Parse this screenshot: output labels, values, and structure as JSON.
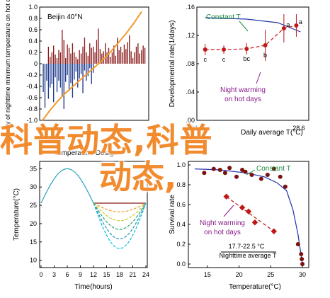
{
  "chart_data": [
    {
      "panel": "top-left",
      "type": "bar",
      "title": "Beijin 40°N",
      "ylabel": "Anomaly of nighttime minimum temperature on hot days",
      "xlabel": "",
      "ylim": [
        -1.0,
        1.0
      ],
      "yticks": [
        -1.0,
        -0.8,
        -0.6,
        -0.4,
        -0.2,
        0.0,
        0.2,
        0.4,
        0.6,
        0.8,
        1.0
      ],
      "ytick_labels": [
        "-1.0",
        "-0.8",
        "-0.6",
        "-0.4",
        "-0.2",
        "0",
        "0.2",
        "0.4",
        "0.6",
        "0.8",
        "1.0"
      ],
      "x_count": 60,
      "values": [
        0.4,
        0.22,
        0.18,
        0.3,
        0.12,
        0.2,
        0.32,
        0.16,
        0.1,
        0.24,
        0.2,
        0.6,
        0.42,
        0.1,
        0.34,
        0.28,
        0.18,
        0.36,
        0.2,
        0.12,
        0.08,
        0.24,
        0.18,
        0.3,
        0.46,
        0.2,
        0.14,
        0.36,
        0.28,
        0.3,
        0.2,
        0.42,
        0.62,
        0.26,
        0.18,
        0.22,
        0.36,
        0.2,
        0.28,
        0.12,
        0.2,
        0.32,
        0.14,
        0.46,
        0.24,
        0.3,
        0.2,
        0.34,
        0.26,
        0.38,
        0.5,
        0.22,
        0.1,
        0.2,
        0.3,
        0.36,
        0.18,
        0.24,
        0.32,
        0.28
      ],
      "negative_values": [
        -0.5,
        -0.78,
        -0.3,
        -0.62,
        -0.42,
        -0.36,
        -0.68,
        -0.24,
        -0.5,
        -0.3,
        -0.42,
        -0.58,
        -0.8,
        -0.32,
        -0.2,
        -0.48,
        -0.34,
        -0.6,
        -0.28,
        -0.14,
        -0.42,
        -0.26,
        -0.18,
        -0.52,
        -0.12,
        -0.3,
        -0.22,
        -0.08,
        -0.36,
        -0.16,
        -0.1,
        -0.2,
        -0.06,
        -0.18,
        -0.26,
        -0.12,
        -0.04,
        -0.14,
        -0.32,
        -0.08,
        -0.06,
        -0.2,
        -0.1,
        -0.04,
        -0.22,
        -0.12,
        -0.14,
        -0.06,
        -0.08,
        -0.16,
        -0.1,
        -0.2,
        -0.06,
        -0.04,
        -0.12,
        -0.08,
        -0.1,
        -0.04,
        -0.06,
        -0.02
      ],
      "trend": [
        -1.0,
        -0.82,
        -0.66,
        -0.52,
        -0.4,
        -0.28,
        -0.16,
        -0.04,
        0.08,
        0.22,
        0.38,
        0.54,
        0.72,
        0.92
      ]
    },
    {
      "panel": "top-right",
      "type": "line",
      "title": "",
      "ylabel": "Developmental rate(1/days)",
      "xlabel": "Daily average T(°C)",
      "x_range": [
        24.0,
        28.6
      ],
      "ylim": [
        0.0,
        0.16
      ],
      "yticks": [
        0.0,
        0.04,
        0.08,
        0.12,
        0.16
      ],
      "ytick_labels": [
        ".00",
        ".04",
        ".08",
        ".12",
        ".16"
      ],
      "xtick_labels": [
        "24.0",
        "28.6"
      ],
      "constant_t": {
        "x": [
          24.0,
          26.0,
          27.5,
          28.6
        ],
        "y": [
          0.145,
          0.143,
          0.138,
          0.125
        ]
      },
      "night_warming": {
        "x": [
          24.0,
          24.9,
          26.0,
          26.9,
          27.8,
          28.4
        ],
        "y": [
          0.1,
          0.1,
          0.101,
          0.106,
          0.13,
          0.134
        ],
        "err": [
          0.008,
          0.006,
          0.008,
          0.022,
          0.02,
          0.016
        ],
        "letters": [
          "c",
          "c",
          "bc",
          "b",
          "a",
          "a"
        ]
      },
      "annotations": [
        "Constant T",
        "Night warming on hot days"
      ]
    },
    {
      "panel": "bottom-left",
      "type": "line",
      "title": "Temperature Design",
      "ylabel": "Temperature(°C)",
      "xlabel": "Time(hours)",
      "x_ticks": [
        0,
        3,
        6,
        9,
        12,
        15,
        18,
        21,
        24
      ],
      "ylim": [
        10,
        35
      ],
      "yticks": [
        10,
        15,
        20,
        25,
        30,
        35
      ],
      "day_curve": {
        "x": [
          0,
          2,
          4,
          6,
          8,
          10,
          12
        ],
        "y": [
          25.6,
          30.2,
          33.6,
          35.0,
          33.6,
          30.2,
          25.6
        ]
      },
      "night_curves": [
        {
          "color": "#8b1a1a",
          "min": 25.6
        },
        {
          "color": "#f29a2e",
          "min": 23.2
        },
        {
          "color": "#c9c92a",
          "min": 20.8
        },
        {
          "color": "#2aa36a",
          "min": 18.4
        },
        {
          "color": "#2a8fb8",
          "min": 15.8
        },
        {
          "color": "#00c0e0",
          "min": 13.2
        }
      ]
    },
    {
      "panel": "bottom-right",
      "type": "scatter",
      "title": "",
      "ylabel": "Survival rate",
      "xlabel": "Temperature(°C)",
      "x_ticks": [
        15,
        20,
        25,
        30
      ],
      "xlim": [
        12,
        31
      ],
      "ylim": [
        0.0,
        1.0
      ],
      "yticks": [
        0.0,
        0.2,
        0.4,
        0.6,
        0.8,
        1.0
      ],
      "ytick_labels": [
        "0.0",
        "0.2",
        "0.4",
        "0.6",
        "0.8",
        "1.0"
      ],
      "constant_t": {
        "x": [
          14.5,
          16.0,
          17.0,
          17.8,
          18.5,
          19.6,
          20.5,
          21.0,
          22.0,
          23.5,
          24.5,
          25.5,
          26.5,
          27.3,
          29.3,
          29.8,
          29.9,
          30.0
        ],
        "y": [
          0.92,
          0.96,
          0.95,
          0.92,
          0.97,
          0.88,
          0.95,
          0.93,
          0.9,
          0.86,
          0.9,
          0.96,
          0.88,
          0.78,
          0.2,
          0.1,
          0.05,
          0.0
        ],
        "curve_x": [
          13,
          17,
          21,
          24,
          26,
          27.5,
          28.5,
          29.3,
          30
        ],
        "curve_y": [
          0.96,
          0.95,
          0.92,
          0.88,
          0.82,
          0.74,
          0.55,
          0.3,
          0.0
        ]
      },
      "night_warming": {
        "x": [
          18.0,
          20.5,
          21.5,
          22.5,
          25.5
        ],
        "y": [
          0.68,
          0.57,
          0.53,
          0.42,
          0.33
        ]
      },
      "annotations": [
        "Constant T",
        "Night warming on hot days",
        "17.7-22.5 °C",
        "Nighttime average T"
      ]
    }
  ],
  "overlay": {
    "line1": "科普动态,科普",
    "line2": "动态,"
  },
  "colors": {
    "bar": "#8b1a1a",
    "neg_bar": "#1f3b8c",
    "trend": "#f29a2e",
    "curve": "#2233aa",
    "point": "#c01818",
    "overlay": "#f28a2e",
    "annot_green": "#1a8a3a",
    "annot_purple": "#8a1a8a"
  }
}
